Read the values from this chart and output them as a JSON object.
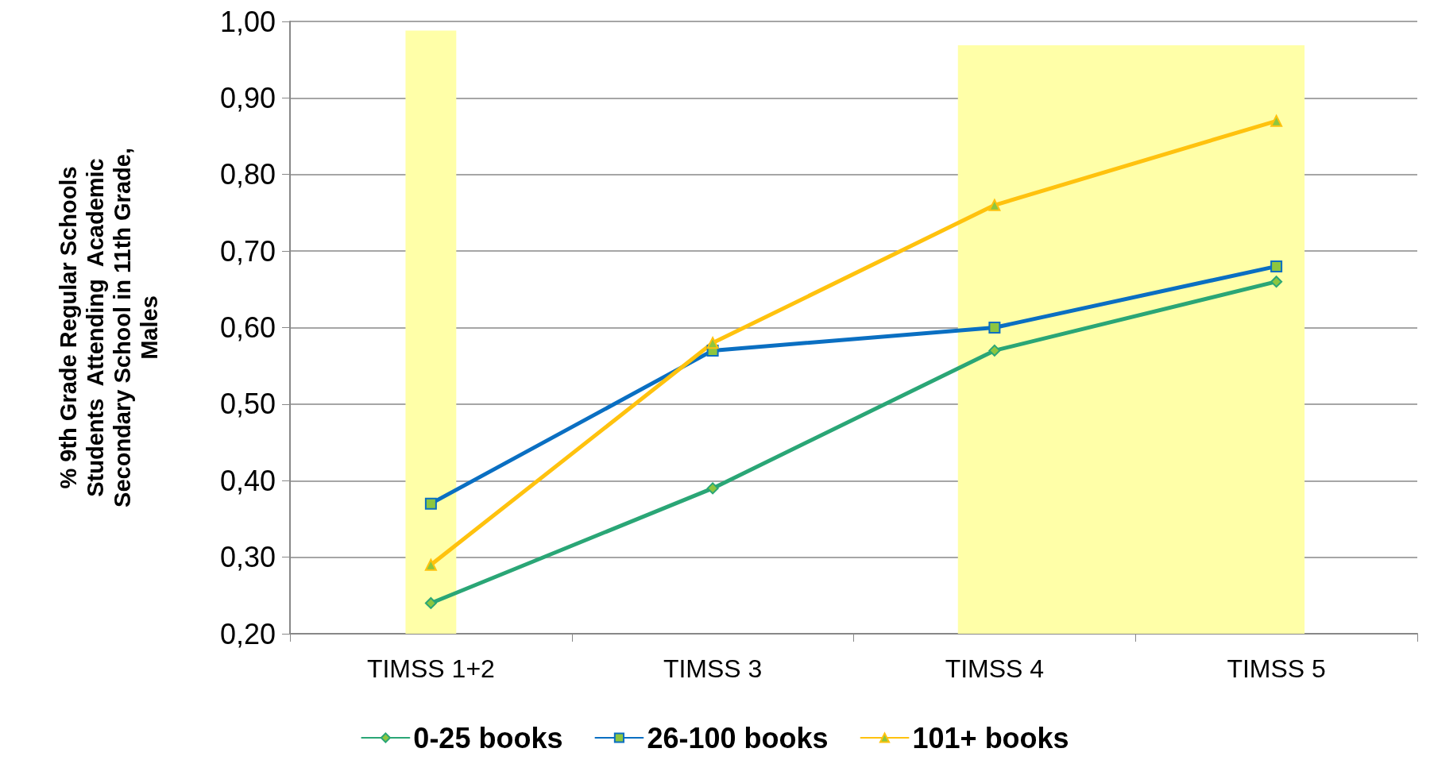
{
  "chart_data": {
    "type": "line",
    "ylabel": "% 9th Grade Regular Schools Students  Attending  Academic Secondary School in 11th Grade, Males",
    "categories": [
      "TIMSS 1+2",
      "TIMSS 3",
      "TIMSS 4",
      "TIMSS 5"
    ],
    "series": [
      {
        "name": "0-25 books",
        "color": "#2aa676",
        "marker": "diamond",
        "values": [
          0.24,
          0.39,
          0.57,
          0.66
        ]
      },
      {
        "name": "26-100 books",
        "color": "#0a6fc2",
        "marker": "square",
        "values": [
          0.37,
          0.57,
          0.6,
          0.68
        ]
      },
      {
        "name": "101+ books",
        "color": "#ffc20e",
        "marker": "triangle",
        "values": [
          0.29,
          0.58,
          0.76,
          0.87
        ]
      }
    ],
    "ylim": [
      0.2,
      1.0
    ],
    "yticks": [
      {
        "value": 0.2,
        "label": "0,20"
      },
      {
        "value": 0.3,
        "label": "0,30"
      },
      {
        "value": 0.4,
        "label": "0,40"
      },
      {
        "value": 0.5,
        "label": "0,50"
      },
      {
        "value": 0.6,
        "label": "0,60"
      },
      {
        "value": 0.7,
        "label": "0,70"
      },
      {
        "value": 0.8,
        "label": "0,80"
      },
      {
        "value": 0.9,
        "label": "0,90"
      },
      {
        "value": 1.0,
        "label": "1,00"
      }
    ],
    "bands": [
      {
        "axis": "x",
        "from": "TIMSS 1+2",
        "to": "TIMSS 1+2",
        "color": "#ffffa8"
      },
      {
        "axis": "x",
        "from": "TIMSS 4",
        "to": "TIMSS 5",
        "color": "#ffffa8"
      }
    ],
    "grid": "y",
    "legend": "bottom",
    "line_style": "solid"
  }
}
